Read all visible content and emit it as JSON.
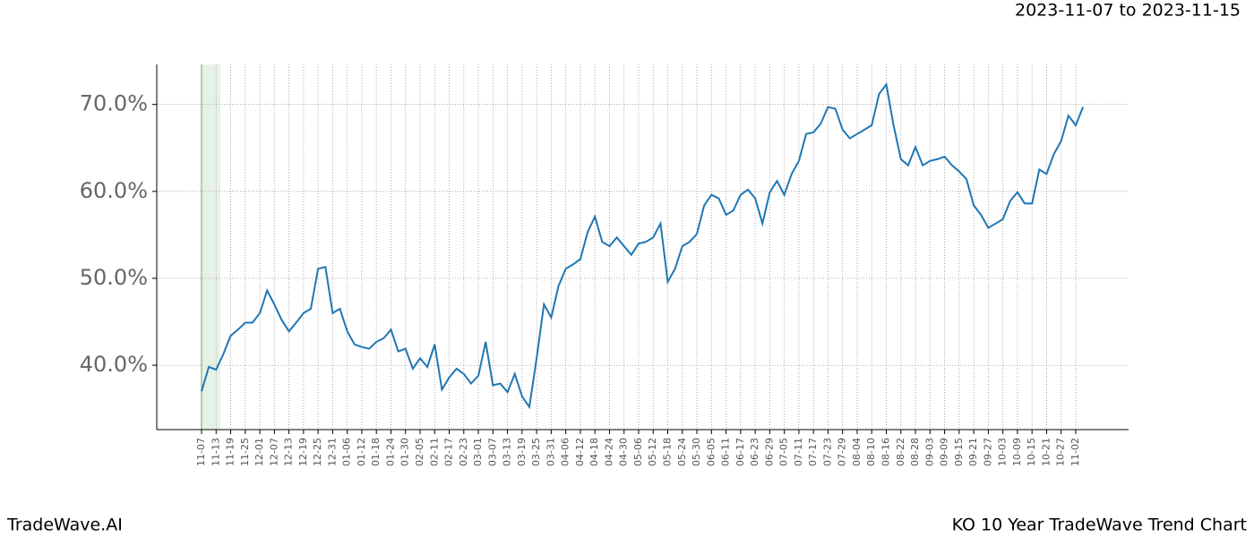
{
  "chart_data": {
    "type": "line",
    "title": "2023-11-07 to 2023-11-15",
    "footer_left": "TradeWave.AI",
    "footer_right": "KO 10 Year TradeWave Trend Chart",
    "x": [
      "11-07",
      "11-10",
      "11-13",
      "11-16",
      "11-19",
      "11-22",
      "11-25",
      "11-28",
      "12-01",
      "12-04",
      "12-07",
      "12-10",
      "12-13",
      "12-16",
      "12-19",
      "12-22",
      "12-25",
      "12-28",
      "12-31",
      "01-03",
      "01-06",
      "01-09",
      "01-12",
      "01-15",
      "01-18",
      "01-21",
      "01-24",
      "01-27",
      "01-30",
      "02-02",
      "02-05",
      "02-08",
      "02-11",
      "02-14",
      "02-17",
      "02-20",
      "02-23",
      "02-26",
      "03-01",
      "03-04",
      "03-07",
      "03-10",
      "03-13",
      "03-16",
      "03-19",
      "03-22",
      "03-25",
      "03-28",
      "03-31",
      "04-03",
      "04-06",
      "04-09",
      "04-12",
      "04-15",
      "04-18",
      "04-21",
      "04-24",
      "04-27",
      "04-30",
      "05-03",
      "05-06",
      "05-09",
      "05-12",
      "05-15",
      "05-18",
      "05-21",
      "05-24",
      "05-27",
      "05-30",
      "06-02",
      "06-05",
      "06-08",
      "06-11",
      "06-14",
      "06-17",
      "06-20",
      "06-23",
      "06-26",
      "06-29",
      "07-02",
      "07-05",
      "07-08",
      "07-11",
      "07-14",
      "07-17",
      "07-20",
      "07-23",
      "07-26",
      "07-29",
      "08-01",
      "08-04",
      "08-07",
      "08-10",
      "08-13",
      "08-16",
      "08-19",
      "08-22",
      "08-25",
      "08-28",
      "08-31",
      "09-03",
      "09-06",
      "09-09",
      "09-12",
      "09-15",
      "09-18",
      "09-21",
      "09-24",
      "09-27",
      "09-30",
      "10-03",
      "10-06",
      "10-09",
      "10-12",
      "10-15",
      "10-18",
      "10-21",
      "10-24",
      "10-27",
      "10-30",
      "11-02",
      "11-05"
    ],
    "series": [
      {
        "color": "#1f77b4",
        "values": [
          37.0,
          39.8,
          39.5,
          41.3,
          43.4,
          44.1,
          44.9,
          44.9,
          46.0,
          48.6,
          47.0,
          45.2,
          43.9,
          44.9,
          46.0,
          46.5,
          51.1,
          51.3,
          46.0,
          46.5,
          43.9,
          42.4,
          42.1,
          41.9,
          42.7,
          43.1,
          44.1,
          41.6,
          41.9,
          39.6,
          40.8,
          39.8,
          42.4,
          37.2,
          38.6,
          39.6,
          39.0,
          37.9,
          38.8,
          42.7,
          37.7,
          37.9,
          36.9,
          39.0,
          36.4,
          35.2,
          40.8,
          47.0,
          45.5,
          49.1,
          51.1,
          51.6,
          52.2,
          55.3,
          57.1,
          54.2,
          53.7,
          54.7,
          53.7,
          52.7,
          54.0,
          54.2,
          54.7,
          56.3,
          49.6,
          51.1,
          53.7,
          54.2,
          55.1,
          58.4,
          59.6,
          59.2,
          57.3,
          57.8,
          59.6,
          60.2,
          59.2,
          56.3,
          59.9,
          61.2,
          59.6,
          62.0,
          63.5,
          66.6,
          66.8,
          67.8,
          69.7,
          69.5,
          67.1,
          66.1,
          66.6,
          67.1,
          67.6,
          71.2,
          72.3,
          67.6,
          63.7,
          63.0,
          65.1,
          63.0,
          63.5,
          63.7,
          64.0,
          63.0,
          62.3,
          61.4,
          58.4,
          57.3,
          55.8,
          56.3,
          56.8,
          58.9,
          59.9,
          58.6,
          58.6,
          62.5,
          62.0,
          64.3,
          65.8,
          68.7,
          67.6,
          69.7
        ]
      }
    ],
    "xticks": [
      "11-07",
      "11-13",
      "11-19",
      "11-25",
      "12-01",
      "12-07",
      "12-13",
      "12-19",
      "12-25",
      "12-31",
      "01-06",
      "01-12",
      "01-18",
      "01-24",
      "01-30",
      "02-05",
      "02-11",
      "02-17",
      "02-23",
      "03-01",
      "03-07",
      "03-13",
      "03-19",
      "03-25",
      "03-31",
      "04-06",
      "04-12",
      "04-18",
      "04-24",
      "04-30",
      "05-06",
      "05-12",
      "05-18",
      "05-24",
      "05-30",
      "06-05",
      "06-11",
      "06-17",
      "06-23",
      "06-29",
      "07-05",
      "07-11",
      "07-17",
      "07-23",
      "07-29",
      "08-04",
      "08-10",
      "08-16",
      "08-22",
      "08-28",
      "09-03",
      "09-09",
      "09-15",
      "09-21",
      "09-27",
      "10-03",
      "10-09",
      "10-15",
      "10-21",
      "10-27",
      "11-02"
    ],
    "ylim": [
      32.6,
      74.6
    ],
    "yticks": [
      {
        "value": 40,
        "label": "40.0%"
      },
      {
        "value": 50,
        "label": "50.0%"
      },
      {
        "value": 60,
        "label": "60.0%"
      },
      {
        "value": 70,
        "label": "70.0%"
      }
    ],
    "grid": true
  }
}
